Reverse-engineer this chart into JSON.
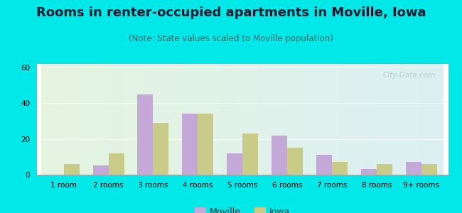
{
  "title": "Rooms in renter-occupied apartments in Moville, Iowa",
  "subtitle": "(Note: State values scaled to Moville population)",
  "categories": [
    "1 room",
    "2 rooms",
    "3 rooms",
    "4 rooms",
    "5 rooms",
    "6 rooms",
    "7 rooms",
    "8 rooms",
    "9+ rooms"
  ],
  "moville_values": [
    0,
    5,
    45,
    34,
    12,
    22,
    11,
    3,
    7
  ],
  "iowa_values": [
    6,
    12,
    29,
    34,
    23,
    15,
    7,
    6,
    6
  ],
  "moville_color": "#c4a8d8",
  "iowa_color": "#c8cc88",
  "background_outer": "#00e8e8",
  "ylim": [
    0,
    62
  ],
  "yticks": [
    0,
    20,
    40,
    60
  ],
  "bar_width": 0.35,
  "title_fontsize": 13,
  "subtitle_fontsize": 8.5,
  "tick_fontsize": 7.5,
  "legend_fontsize": 9,
  "watermark_text": "City-Data.com"
}
